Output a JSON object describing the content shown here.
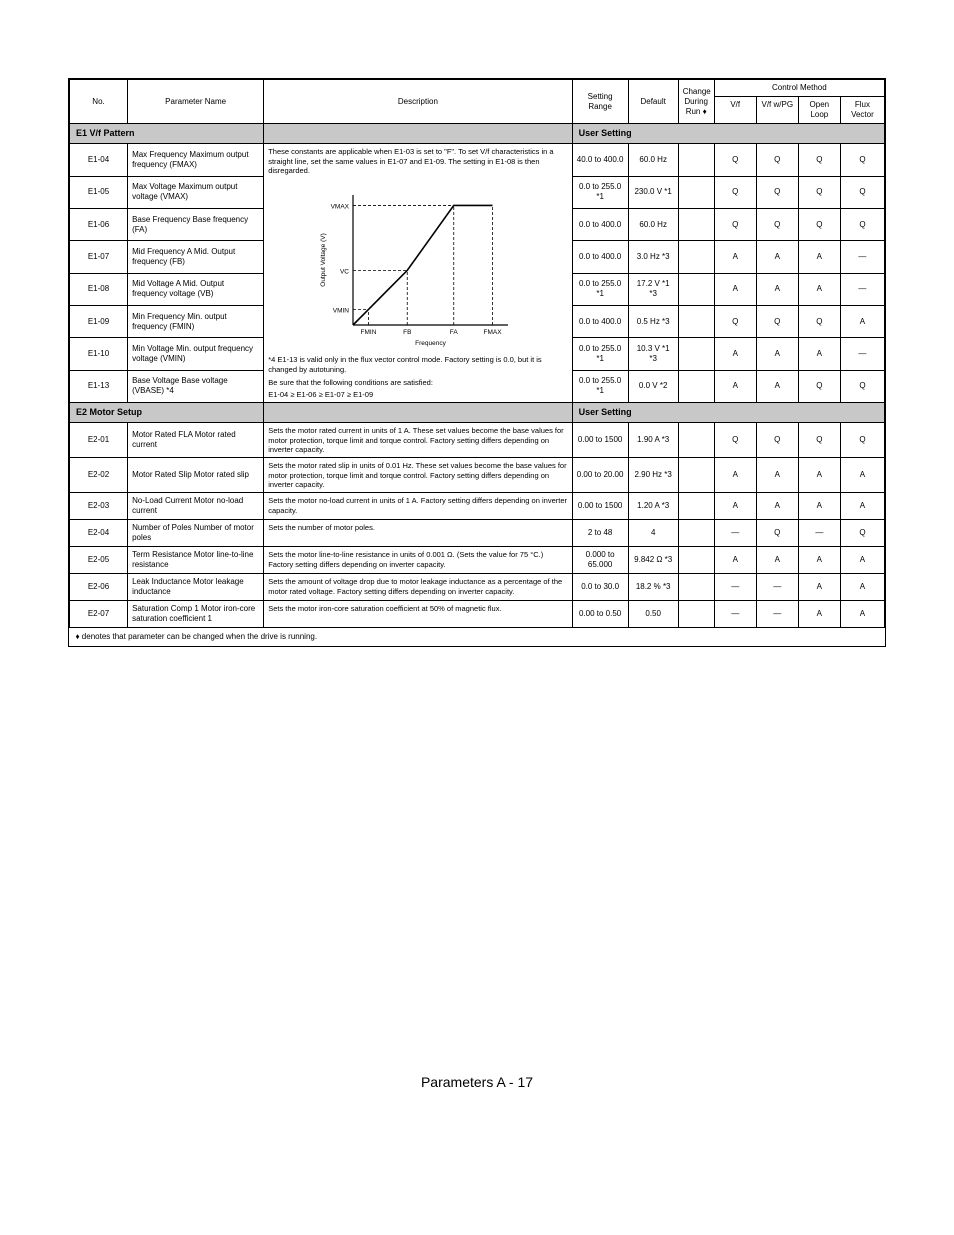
{
  "header": {
    "no": "No.",
    "name": "Parameter\nName",
    "desc": "Description",
    "setting": "Setting\nRange",
    "default": "Default",
    "ctrl": "Control Method",
    "modes": [
      "V/f",
      "V/f w/PG",
      "Open Loop",
      "Flux Vector"
    ]
  },
  "section_e1": {
    "title_left": "E1 V/f Pattern",
    "title_right": "User Setting"
  },
  "rows_e1": [
    {
      "no": "E1-04",
      "name": "Max Frequency\nMaximum output frequency (FMAX)",
      "range": "40.0 to 400.0",
      "default": "60.0 Hz",
      "m": [
        "Q",
        "Q",
        "Q",
        "Q"
      ]
    },
    {
      "no": "E1-05",
      "name": "Max Voltage\nMaximum output voltage (VMAX)",
      "range": "0.0 to 255.0 *1",
      "default": "230.0 V *1",
      "m": [
        "Q",
        "Q",
        "Q",
        "Q"
      ]
    },
    {
      "no": "E1-06",
      "name": "Base Frequency\nBase frequency (FA)",
      "range": "0.0 to 400.0",
      "default": "60.0 Hz",
      "m": [
        "Q",
        "Q",
        "Q",
        "Q"
      ]
    },
    {
      "no": "E1-07",
      "name": "Mid Frequency A\nMid. Output frequency (FB)",
      "range": "0.0 to 400.0",
      "default": "3.0 Hz *3",
      "m": [
        "A",
        "A",
        "A",
        "—"
      ]
    },
    {
      "no": "E1-08",
      "name": "Mid Voltage A\nMid. Output frequency voltage (VB)",
      "range": "0.0 to 255.0 *1",
      "default": "17.2 V *1 *3",
      "m": [
        "A",
        "A",
        "A",
        "—"
      ]
    },
    {
      "no": "E1-09",
      "name": "Min Frequency\nMin. output frequency (FMIN)",
      "range": "0.0 to 400.0",
      "default": "0.5 Hz *3",
      "m": [
        "Q",
        "Q",
        "Q",
        "A"
      ]
    },
    {
      "no": "E1-10",
      "name": "Min Voltage\nMin. output frequency voltage (VMIN)",
      "range": "0.0 to 255.0 *1",
      "default": "10.3 V *1 *3",
      "m": [
        "A",
        "A",
        "A",
        "—"
      ]
    },
    {
      "no": "E1-13",
      "name": "Base Voltage\nBase voltage (VBASE) *4",
      "range": "0.0 to 255.0 *1",
      "default": "0.0 V *2",
      "m": [
        "A",
        "A",
        "Q",
        "Q"
      ]
    }
  ],
  "desc_e1": {
    "lead": "These constants are applicable when E1-03 is set to \"F\". To set V/f characteristics in a straight line, set the same values in E1-07 and E1-09. The setting in E1-08 is then disregarded.",
    "note_star4": "*4 E1-13 is valid only in the flux vector control mode. Factory setting is 0.0, but it is changed by autotuning.",
    "note_cond": "Be sure that the following conditions are satisfied:",
    "cond": "E1-04 ≥ E1-06 ≥ E1-07 ≥ E1-09"
  },
  "chart": {
    "type": "line",
    "x_labels": [
      "FMIN",
      "FB",
      "FA",
      "FMAX"
    ],
    "y_labels": [
      "VMIN",
      "VC",
      "VMAX"
    ],
    "axis_label_x": "Frequency",
    "axis_label_y": "Output Voltage (V)",
    "x_pts": [
      0.1,
      0.35,
      0.65,
      0.9
    ],
    "y_pts": [
      0.12,
      0.42,
      0.92,
      0.92
    ],
    "line_color": "#000000",
    "dash_color": "#000000",
    "bg": "#ffffff",
    "fontsize": 6.5
  },
  "section_e2": {
    "title_left": "E2 Motor Setup",
    "title_right": "User Setting"
  },
  "rows_e2": [
    {
      "no": "E2-01",
      "name": "Motor Rated FLA\nMotor rated current",
      "desc": "Sets the motor rated current in units of 1 A. These set values become the base values for motor protection, torque limit and torque control. Factory setting differs depending on inverter capacity.",
      "range": "0.00 to 1500",
      "default": "1.90 A *3",
      "m": [
        "Q",
        "Q",
        "Q",
        "Q"
      ]
    },
    {
      "no": "E2-02",
      "name": "Motor Rated Slip\nMotor rated slip",
      "desc": "Sets the motor rated slip in units of 0.01 Hz. These set values become the base values for motor protection, torque limit and torque control. Factory setting differs depending on inverter capacity.",
      "range": "0.00 to 20.00",
      "default": "2.90 Hz *3",
      "m": [
        "A",
        "A",
        "A",
        "A"
      ]
    },
    {
      "no": "E2-03",
      "name": "No-Load Current\nMotor no-load current",
      "desc": "Sets the motor no-load current in units of 1 A. Factory setting differs depending on inverter capacity.",
      "range": "0.00 to 1500",
      "default": "1.20 A *3",
      "m": [
        "A",
        "A",
        "A",
        "A"
      ]
    },
    {
      "no": "E2-04",
      "name": "Number of Poles\nNumber of motor poles",
      "desc": "Sets the number of motor poles.",
      "range": "2 to 48",
      "default": "4",
      "m": [
        "—",
        "Q",
        "—",
        "Q"
      ]
    },
    {
      "no": "E2-05",
      "name": "Term Resistance\nMotor line-to-line resistance",
      "desc": "Sets the motor line-to-line resistance in units of 0.001 Ω. (Sets the value for 75 °C.) Factory setting differs depending on inverter capacity.",
      "range": "0.000 to 65.000",
      "default": "9.842 Ω *3",
      "m": [
        "A",
        "A",
        "A",
        "A"
      ]
    },
    {
      "no": "E2-06",
      "name": "Leak Inductance\nMotor leakage inductance",
      "desc": "Sets the amount of voltage drop due to motor leakage inductance as a percentage of the motor rated voltage. Factory setting differs depending on inverter capacity.",
      "range": "0.0 to 30.0",
      "default": "18.2 % *3",
      "m": [
        "—",
        "—",
        "A",
        "A"
      ]
    },
    {
      "no": "E2-07",
      "name": "Saturation Comp 1\nMotor iron-core saturation coefficient 1",
      "desc": "Sets the motor iron-core saturation coefficient at 50% of magnetic flux.",
      "range": "0.00 to 0.50",
      "default": "0.50",
      "m": [
        "—",
        "—",
        "A",
        "A"
      ]
    }
  ],
  "footnote": "♦ denotes that parameter can be changed when the drive is running.",
  "footer": "Parameters A - 17"
}
